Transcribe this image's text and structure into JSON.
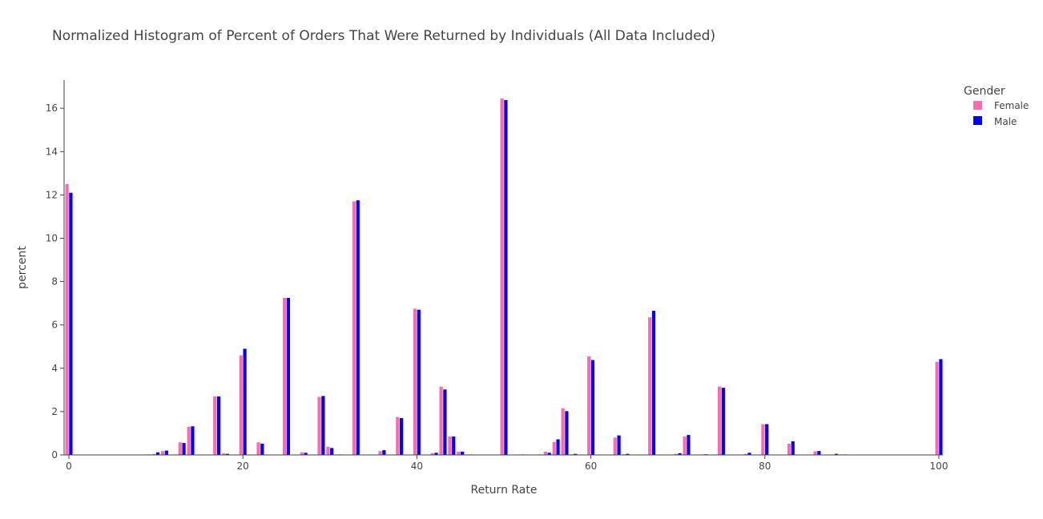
{
  "chart_data": {
    "type": "bar",
    "title": "Normalized Histogram of Percent of Orders That Were Returned by Individuals (All Data Included)",
    "xlabel": "Return Rate",
    "ylabel": "percent",
    "xlim": [
      0,
      100
    ],
    "ylim": [
      0,
      17.3
    ],
    "x_ticks": [
      0,
      20,
      40,
      60,
      80,
      100
    ],
    "y_ticks": [
      0,
      2,
      4,
      6,
      8,
      10,
      12,
      14,
      16
    ],
    "grid": false,
    "legend": {
      "title": "Gender",
      "placement": "top-right"
    },
    "series": [
      {
        "name": "Female",
        "color": "#ff69b4",
        "points": [
          [
            0,
            12.5
          ],
          [
            9,
            0.02
          ],
          [
            10,
            0.05
          ],
          [
            11,
            0.18
          ],
          [
            12.5,
            0.02
          ],
          [
            13,
            0.58
          ],
          [
            14,
            1.3
          ],
          [
            17,
            2.7
          ],
          [
            18,
            0.07
          ],
          [
            20,
            4.6
          ],
          [
            22,
            0.58
          ],
          [
            25,
            7.25
          ],
          [
            27,
            0.12
          ],
          [
            29,
            2.68
          ],
          [
            30,
            0.38
          ],
          [
            31,
            0.02
          ],
          [
            33,
            11.7
          ],
          [
            36,
            0.18
          ],
          [
            38,
            1.75
          ],
          [
            40,
            6.75
          ],
          [
            42,
            0.08
          ],
          [
            43,
            3.15
          ],
          [
            44,
            0.85
          ],
          [
            45,
            0.15
          ],
          [
            46,
            0.02
          ],
          [
            50,
            16.45
          ],
          [
            52,
            0.02
          ],
          [
            54,
            0.02
          ],
          [
            55,
            0.15
          ],
          [
            56,
            0.6
          ],
          [
            57,
            2.15
          ],
          [
            58,
            0.03
          ],
          [
            60,
            4.55
          ],
          [
            63,
            0.8
          ],
          [
            64,
            0.03
          ],
          [
            67,
            6.35
          ],
          [
            70,
            0.05
          ],
          [
            71,
            0.85
          ],
          [
            73,
            0.02
          ],
          [
            75,
            3.15
          ],
          [
            78,
            0.05
          ],
          [
            80,
            1.42
          ],
          [
            83,
            0.52
          ],
          [
            86,
            0.17
          ],
          [
            88,
            0.02
          ],
          [
            89,
            0.02
          ],
          [
            100,
            4.3
          ]
        ]
      },
      {
        "name": "Male",
        "color": "#0000ff",
        "points": [
          [
            0,
            12.1
          ],
          [
            9,
            0.02
          ],
          [
            10,
            0.12
          ],
          [
            11,
            0.2
          ],
          [
            12.5,
            0.02
          ],
          [
            13,
            0.55
          ],
          [
            14,
            1.32
          ],
          [
            17,
            2.7
          ],
          [
            18,
            0.05
          ],
          [
            20,
            4.9
          ],
          [
            22,
            0.52
          ],
          [
            25,
            7.25
          ],
          [
            27,
            0.1
          ],
          [
            29,
            2.72
          ],
          [
            30,
            0.32
          ],
          [
            31,
            0.02
          ],
          [
            33,
            11.75
          ],
          [
            36,
            0.22
          ],
          [
            38,
            1.7
          ],
          [
            40,
            6.7
          ],
          [
            42,
            0.1
          ],
          [
            43,
            3.02
          ],
          [
            44,
            0.85
          ],
          [
            45,
            0.15
          ],
          [
            46,
            0.02
          ],
          [
            50,
            16.38
          ],
          [
            52,
            0.02
          ],
          [
            54,
            0.02
          ],
          [
            55,
            0.1
          ],
          [
            56,
            0.72
          ],
          [
            57,
            2.02
          ],
          [
            58,
            0.05
          ],
          [
            60,
            4.38
          ],
          [
            63,
            0.9
          ],
          [
            64,
            0.05
          ],
          [
            67,
            6.65
          ],
          [
            70,
            0.08
          ],
          [
            71,
            0.92
          ],
          [
            73,
            0.03
          ],
          [
            75,
            3.1
          ],
          [
            78,
            0.1
          ],
          [
            80,
            1.42
          ],
          [
            83,
            0.63
          ],
          [
            86,
            0.18
          ],
          [
            88,
            0.05
          ],
          [
            89,
            0.02
          ],
          [
            100,
            4.42
          ]
        ]
      }
    ]
  }
}
